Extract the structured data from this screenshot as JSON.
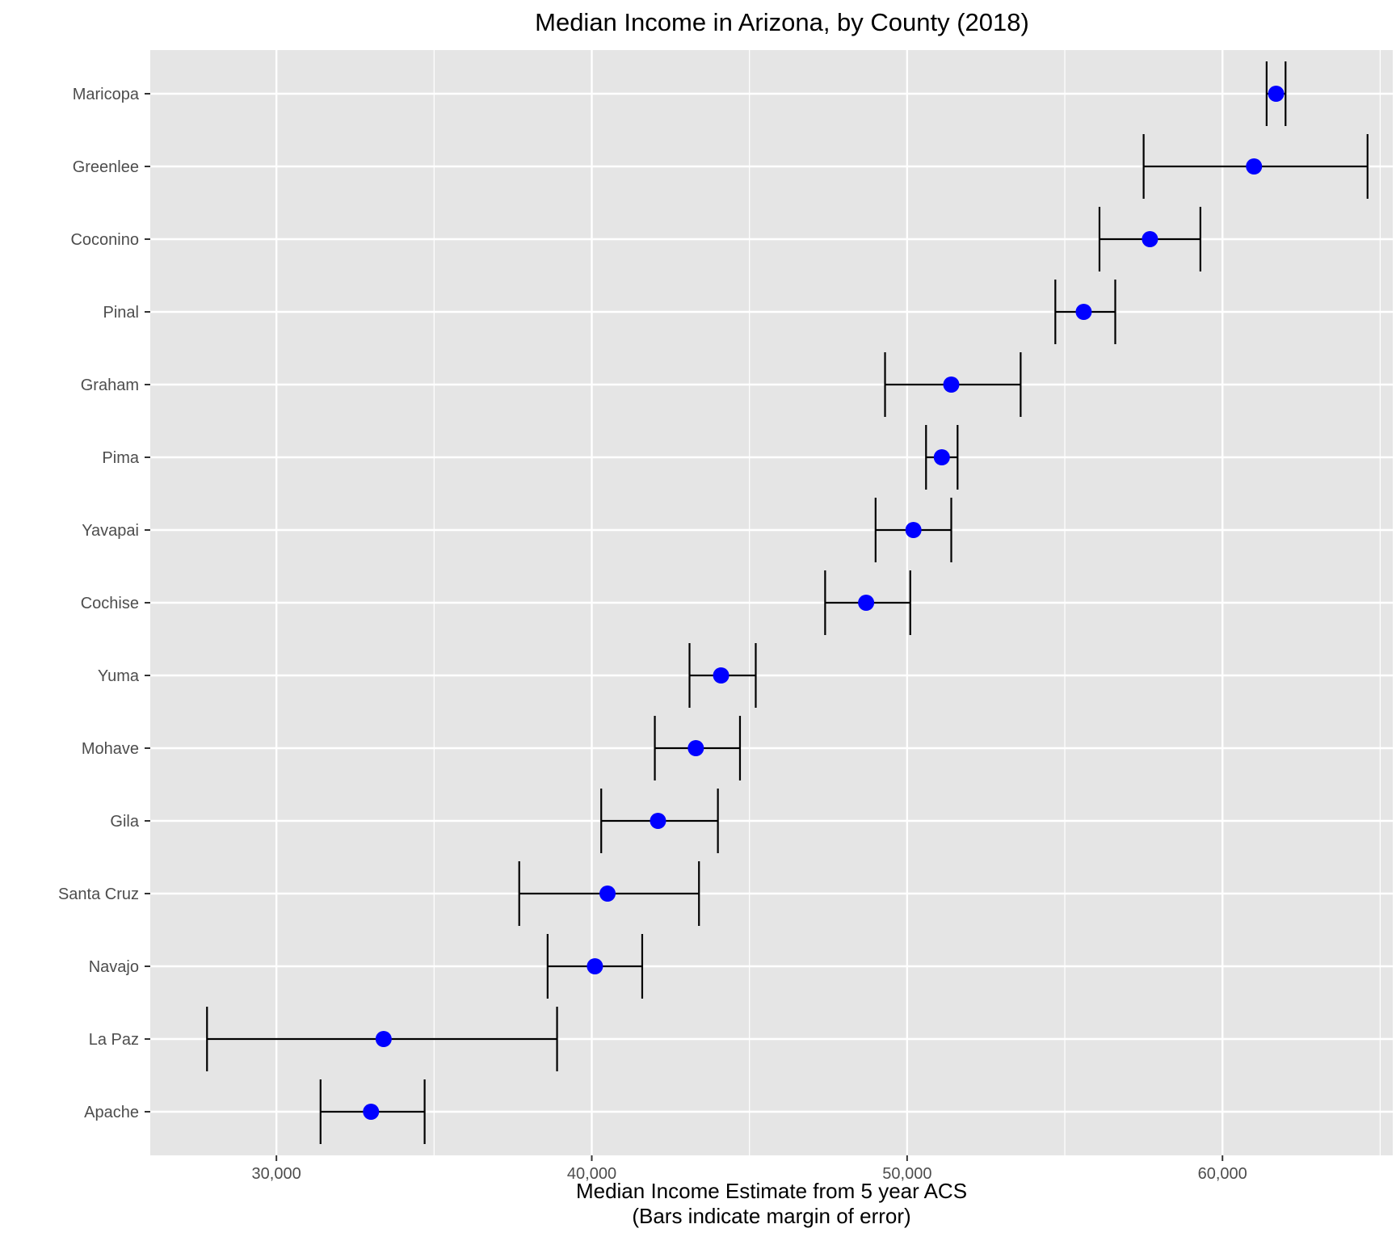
{
  "chart_data": {
    "type": "scatter",
    "title": "Median Income in Arizona, by County (2018)",
    "xlabel_lines": [
      "Median Income Estimate from 5 year ACS",
      "(Bars indicate margin of error)"
    ],
    "ylabel": "",
    "xlim": [
      26000,
      65400
    ],
    "x_ticks": [
      30000,
      40000,
      50000,
      60000
    ],
    "x_tick_labels": [
      "30,000",
      "40,000",
      "50,000",
      "60,000"
    ],
    "grid": true,
    "colors": {
      "panel": "#e5e5e5",
      "grid": "#ffffff",
      "point": "#0000ff",
      "errorbar": "#000000"
    },
    "categories": [
      "Maricopa",
      "Greenlee",
      "Coconino",
      "Pinal",
      "Graham",
      "Pima",
      "Yavapai",
      "Cochise",
      "Yuma",
      "Mohave",
      "Gila",
      "Santa Cruz",
      "Navajo",
      "La Paz",
      "Apache"
    ],
    "series": [
      {
        "values": [
          61700,
          61000,
          57700,
          55600,
          51400,
          51100,
          50200,
          48700,
          44100,
          43300,
          42100,
          40500,
          40100,
          33400,
          33000
        ],
        "lower": [
          61400,
          57500,
          56100,
          54700,
          49300,
          50600,
          49000,
          47400,
          43100,
          42000,
          40300,
          37700,
          38600,
          27800,
          31400
        ],
        "upper": [
          62000,
          64600,
          59300,
          56600,
          53600,
          51600,
          51400,
          50100,
          45200,
          44700,
          44000,
          43400,
          41600,
          38900,
          34700
        ]
      }
    ]
  }
}
